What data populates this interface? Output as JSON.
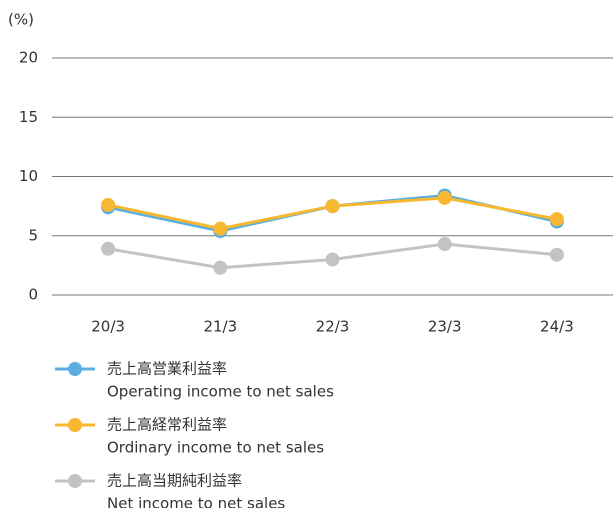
{
  "chart_data": {
    "type": "line",
    "y_unit_label": "(%)",
    "categories": [
      "20/3",
      "21/3",
      "22/3",
      "23/3",
      "24/3"
    ],
    "series": [
      {
        "name": "売上高営業利益率",
        "name_en": "Operating income to net sales",
        "color": "#5aafe0",
        "values": [
          7.4,
          5.4,
          7.5,
          8.4,
          6.2
        ]
      },
      {
        "name": "売上高経常利益率",
        "name_en": "Ordinary income to net sales",
        "color": "#f7b731",
        "values": [
          7.6,
          5.6,
          7.5,
          8.2,
          6.4
        ]
      },
      {
        "name": "売上高当期純利益率",
        "name_en": "Net income to net sales",
        "color": "#c3c3c3",
        "values": [
          3.9,
          2.3,
          3.0,
          4.3,
          3.4
        ]
      }
    ],
    "ylim": [
      0,
      20
    ],
    "yticks": [
      0,
      5,
      10,
      15,
      20
    ],
    "grid": true,
    "legend": "bottom"
  }
}
